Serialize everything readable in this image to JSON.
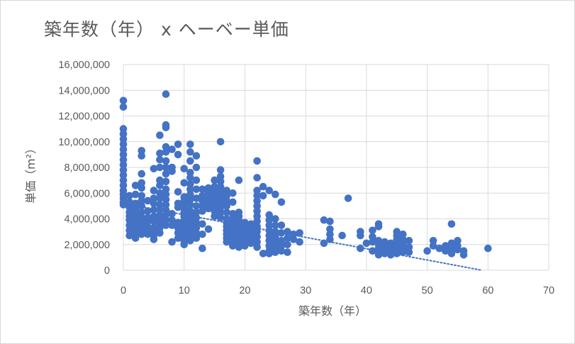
{
  "chart_data": {
    "type": "scatter",
    "title": "築年数（年） x ヘーベー単価",
    "xlabel": "築年数（年）",
    "ylabel": "単価（m²）",
    "xlim": [
      0,
      70
    ],
    "ylim": [
      0,
      16000000
    ],
    "x_ticks": [
      "0",
      "10",
      "20",
      "30",
      "40",
      "50",
      "60",
      "70"
    ],
    "y_ticks": [
      "0",
      "2,000,000",
      "4,000,000",
      "6,000,000",
      "8,000,000",
      "10,000,000",
      "12,000,000",
      "14,000,000",
      "16,000,000"
    ],
    "grid": true,
    "legend": "none",
    "marker_color": "#4472c4",
    "trendline": {
      "style": "dotted linear",
      "color": "#4472c4",
      "start": [
        0,
        5200000
      ],
      "end": [
        59,
        0
      ]
    },
    "points": [
      [
        0,
        13200000
      ],
      [
        0,
        12700000
      ],
      [
        0,
        11000000
      ],
      [
        0,
        10600000
      ],
      [
        0,
        10200000
      ],
      [
        0,
        9800000
      ],
      [
        0,
        9400000
      ],
      [
        0,
        9000000
      ],
      [
        0,
        8600000
      ],
      [
        0,
        8200000
      ],
      [
        0,
        7800000
      ],
      [
        0,
        7400000
      ],
      [
        0,
        7000000
      ],
      [
        0,
        6600000
      ],
      [
        0,
        6200000
      ],
      [
        0,
        5900000
      ],
      [
        0,
        5600000
      ],
      [
        0,
        5300000
      ],
      [
        0,
        5100000
      ],
      [
        1,
        5800000
      ],
      [
        1,
        5300000
      ],
      [
        1,
        4900000
      ],
      [
        1,
        4500000
      ],
      [
        1,
        4200000
      ],
      [
        1,
        3900000
      ],
      [
        1,
        3500000
      ],
      [
        1,
        3100000
      ],
      [
        1,
        2700000
      ],
      [
        2,
        6600000
      ],
      [
        2,
        5900000
      ],
      [
        2,
        5200000
      ],
      [
        2,
        4800000
      ],
      [
        2,
        4400000
      ],
      [
        2,
        4000000
      ],
      [
        2,
        3600000
      ],
      [
        2,
        3200000
      ],
      [
        2,
        2800000
      ],
      [
        2,
        2500000
      ],
      [
        3,
        9300000
      ],
      [
        3,
        8900000
      ],
      [
        3,
        7500000
      ],
      [
        3,
        6800000
      ],
      [
        3,
        6400000
      ],
      [
        3,
        5800000
      ],
      [
        3,
        5400000
      ],
      [
        3,
        5000000
      ],
      [
        3,
        4500000
      ],
      [
        3,
        4100000
      ],
      [
        3,
        3800000
      ],
      [
        3,
        3500000
      ],
      [
        3,
        3100000
      ],
      [
        3,
        2800000
      ],
      [
        4,
        5400000
      ],
      [
        4,
        4600000
      ],
      [
        4,
        4100000
      ],
      [
        4,
        3800000
      ],
      [
        4,
        3400000
      ],
      [
        4,
        3000000
      ],
      [
        4,
        2800000
      ],
      [
        5,
        7900000
      ],
      [
        5,
        6200000
      ],
      [
        5,
        5600000
      ],
      [
        5,
        5200000
      ],
      [
        5,
        4700000
      ],
      [
        5,
        4200000
      ],
      [
        5,
        3800000
      ],
      [
        5,
        3300000
      ],
      [
        5,
        3000000
      ],
      [
        5,
        2700000
      ],
      [
        5,
        2400000
      ],
      [
        6,
        10500000
      ],
      [
        6,
        9100000
      ],
      [
        6,
        8600000
      ],
      [
        6,
        8000000
      ],
      [
        6,
        7000000
      ],
      [
        6,
        6600000
      ],
      [
        6,
        6000000
      ],
      [
        6,
        5600000
      ],
      [
        6,
        5100000
      ],
      [
        6,
        4700000
      ],
      [
        6,
        4300000
      ],
      [
        6,
        4000000
      ],
      [
        6,
        3600000
      ],
      [
        6,
        3300000
      ],
      [
        6,
        2900000
      ],
      [
        7,
        13700000
      ],
      [
        7,
        11300000
      ],
      [
        7,
        11100000
      ],
      [
        7,
        9600000
      ],
      [
        7,
        9200000
      ],
      [
        7,
        8500000
      ],
      [
        7,
        8000000
      ],
      [
        7,
        7500000
      ],
      [
        7,
        6900000
      ],
      [
        7,
        6300000
      ],
      [
        7,
        5900000
      ],
      [
        7,
        5500000
      ],
      [
        7,
        5100000
      ],
      [
        7,
        4700000
      ],
      [
        7,
        4300000
      ],
      [
        7,
        3900000
      ],
      [
        7,
        3500000
      ],
      [
        8,
        9400000
      ],
      [
        8,
        8000000
      ],
      [
        8,
        7700000
      ],
      [
        8,
        4400000
      ],
      [
        8,
        3900000
      ],
      [
        8,
        3500000
      ],
      [
        8,
        2200000
      ],
      [
        9,
        9800000
      ],
      [
        9,
        9000000
      ],
      [
        9,
        6100000
      ],
      [
        9,
        5200000
      ],
      [
        9,
        4900000
      ],
      [
        9,
        3700000
      ],
      [
        9,
        3300000
      ],
      [
        9,
        2900000
      ],
      [
        9,
        2500000
      ],
      [
        10,
        7900000
      ],
      [
        10,
        6800000
      ],
      [
        10,
        5700000
      ],
      [
        10,
        5400000
      ],
      [
        10,
        5100000
      ],
      [
        10,
        4800000
      ],
      [
        10,
        4500000
      ],
      [
        10,
        4200000
      ],
      [
        10,
        3900000
      ],
      [
        10,
        3600000
      ],
      [
        10,
        3300000
      ],
      [
        10,
        3000000
      ],
      [
        10,
        2700000
      ],
      [
        10,
        2300000
      ],
      [
        10,
        2000000
      ],
      [
        11,
        9800000
      ],
      [
        11,
        9200000
      ],
      [
        11,
        8500000
      ],
      [
        11,
        7600000
      ],
      [
        11,
        7200000
      ],
      [
        11,
        6700000
      ],
      [
        11,
        6300000
      ],
      [
        11,
        5900000
      ],
      [
        11,
        5500000
      ],
      [
        11,
        5100000
      ],
      [
        11,
        4600000
      ],
      [
        11,
        4200000
      ],
      [
        11,
        3800000
      ],
      [
        11,
        3400000
      ],
      [
        11,
        3000000
      ],
      [
        11,
        2600000
      ],
      [
        11,
        2300000
      ],
      [
        12,
        8900000
      ],
      [
        12,
        8000000
      ],
      [
        12,
        7000000
      ],
      [
        12,
        6300000
      ],
      [
        12,
        5600000
      ],
      [
        12,
        5000000
      ],
      [
        12,
        4500000
      ],
      [
        12,
        4100000
      ],
      [
        12,
        3700000
      ],
      [
        12,
        3300000
      ],
      [
        12,
        2900000
      ],
      [
        12,
        2500000
      ],
      [
        13,
        6300000
      ],
      [
        13,
        5800000
      ],
      [
        13,
        5400000
      ],
      [
        13,
        5000000
      ],
      [
        13,
        4600000
      ],
      [
        13,
        3600000
      ],
      [
        13,
        2800000
      ],
      [
        13,
        1700000
      ],
      [
        14,
        6400000
      ],
      [
        14,
        6000000
      ],
      [
        14,
        5600000
      ],
      [
        14,
        5200000
      ],
      [
        14,
        4800000
      ],
      [
        14,
        3200000
      ],
      [
        15,
        7000000
      ],
      [
        15,
        6500000
      ],
      [
        15,
        6200000
      ],
      [
        15,
        5800000
      ],
      [
        15,
        5400000
      ],
      [
        15,
        5000000
      ],
      [
        15,
        4600000
      ],
      [
        15,
        4200000
      ],
      [
        16,
        10000000
      ],
      [
        16,
        7800000
      ],
      [
        16,
        7300000
      ],
      [
        16,
        6900000
      ],
      [
        16,
        6500000
      ],
      [
        16,
        6100000
      ],
      [
        16,
        5700000
      ],
      [
        16,
        5300000
      ],
      [
        16,
        4900000
      ],
      [
        16,
        4500000
      ],
      [
        16,
        4100000
      ],
      [
        17,
        6200000
      ],
      [
        17,
        5800000
      ],
      [
        17,
        5400000
      ],
      [
        17,
        5000000
      ],
      [
        17,
        4500000
      ],
      [
        17,
        4000000
      ],
      [
        17,
        3700000
      ],
      [
        17,
        3400000
      ],
      [
        17,
        3100000
      ],
      [
        17,
        2800000
      ],
      [
        17,
        2500000
      ],
      [
        17,
        2200000
      ],
      [
        18,
        6000000
      ],
      [
        18,
        5300000
      ],
      [
        18,
        4400000
      ],
      [
        18,
        4000000
      ],
      [
        18,
        3600000
      ],
      [
        18,
        3300000
      ],
      [
        18,
        3000000
      ],
      [
        18,
        2700000
      ],
      [
        18,
        2400000
      ],
      [
        18,
        2100000
      ],
      [
        18,
        1900000
      ],
      [
        19,
        7000000
      ],
      [
        19,
        4500000
      ],
      [
        19,
        4200000
      ],
      [
        19,
        3900000
      ],
      [
        19,
        3600000
      ],
      [
        19,
        3300000
      ],
      [
        19,
        3000000
      ],
      [
        19,
        2700000
      ],
      [
        19,
        2400000
      ],
      [
        19,
        2100000
      ],
      [
        19,
        1800000
      ],
      [
        20,
        3700000
      ],
      [
        20,
        3300000
      ],
      [
        20,
        2900000
      ],
      [
        20,
        2500000
      ],
      [
        20,
        2200000
      ],
      [
        20,
        1900000
      ],
      [
        21,
        3600000
      ],
      [
        21,
        3200000
      ],
      [
        21,
        2800000
      ],
      [
        21,
        2400000
      ],
      [
        21,
        2100000
      ],
      [
        22,
        8500000
      ],
      [
        22,
        7200000
      ],
      [
        22,
        6200000
      ],
      [
        22,
        5800000
      ],
      [
        22,
        5400000
      ],
      [
        22,
        5000000
      ],
      [
        22,
        4600000
      ],
      [
        22,
        4200000
      ],
      [
        22,
        3800000
      ],
      [
        22,
        3400000
      ],
      [
        22,
        3000000
      ],
      [
        22,
        2600000
      ],
      [
        22,
        2200000
      ],
      [
        22,
        1800000
      ],
      [
        23,
        6500000
      ],
      [
        23,
        5800000
      ],
      [
        23,
        1300000
      ],
      [
        24,
        6200000
      ],
      [
        24,
        4300000
      ],
      [
        24,
        3900000
      ],
      [
        24,
        3500000
      ],
      [
        24,
        3100000
      ],
      [
        24,
        2700000
      ],
      [
        24,
        2300000
      ],
      [
        24,
        1900000
      ],
      [
        24,
        1500000
      ],
      [
        24,
        1300000
      ],
      [
        25,
        5900000
      ],
      [
        25,
        4000000
      ],
      [
        25,
        3500000
      ],
      [
        25,
        3000000
      ],
      [
        25,
        2600000
      ],
      [
        25,
        2200000
      ],
      [
        25,
        1800000
      ],
      [
        25,
        1400000
      ],
      [
        26,
        5300000
      ],
      [
        26,
        3500000
      ],
      [
        26,
        2900000
      ],
      [
        26,
        2300000
      ],
      [
        26,
        1900000
      ],
      [
        26,
        1500000
      ],
      [
        27,
        3000000
      ],
      [
        27,
        2500000
      ],
      [
        27,
        2000000
      ],
      [
        27,
        1400000
      ],
      [
        28,
        2800000
      ],
      [
        28,
        2400000
      ],
      [
        29,
        2900000
      ],
      [
        29,
        2200000
      ],
      [
        33,
        3900000
      ],
      [
        33,
        2100000
      ],
      [
        34,
        3800000
      ],
      [
        34,
        3200000
      ],
      [
        34,
        2800000
      ],
      [
        34,
        2400000
      ],
      [
        36,
        2700000
      ],
      [
        37,
        5600000
      ],
      [
        39,
        3000000
      ],
      [
        39,
        2700000
      ],
      [
        39,
        1700000
      ],
      [
        40,
        2100000
      ],
      [
        41,
        3100000
      ],
      [
        41,
        2600000
      ],
      [
        41,
        2200000
      ],
      [
        41,
        1500000
      ],
      [
        42,
        3600000
      ],
      [
        42,
        3400000
      ],
      [
        42,
        2300000
      ],
      [
        42,
        2000000
      ],
      [
        42,
        1700000
      ],
      [
        42,
        1400000
      ],
      [
        42,
        1200000
      ],
      [
        43,
        2200000
      ],
      [
        43,
        1900000
      ],
      [
        43,
        1600000
      ],
      [
        43,
        1300000
      ],
      [
        44,
        2100000
      ],
      [
        44,
        1800000
      ],
      [
        44,
        1500000
      ],
      [
        44,
        1200000
      ],
      [
        45,
        3000000
      ],
      [
        45,
        2700000
      ],
      [
        45,
        2400000
      ],
      [
        45,
        2100000
      ],
      [
        45,
        1800000
      ],
      [
        45,
        1500000
      ],
      [
        45,
        1300000
      ],
      [
        46,
        2800000
      ],
      [
        46,
        2400000
      ],
      [
        46,
        2000000
      ],
      [
        46,
        1700000
      ],
      [
        46,
        1400000
      ],
      [
        47,
        2300000
      ],
      [
        47,
        1800000
      ],
      [
        47,
        1400000
      ],
      [
        50,
        1500000
      ],
      [
        51,
        2300000
      ],
      [
        51,
        1900000
      ],
      [
        52,
        1700000
      ],
      [
        53,
        1900000
      ],
      [
        53,
        1500000
      ],
      [
        54,
        3600000
      ],
      [
        54,
        2100000
      ],
      [
        54,
        1800000
      ],
      [
        54,
        1500000
      ],
      [
        54,
        1300000
      ],
      [
        55,
        2300000
      ],
      [
        55,
        1900000
      ],
      [
        55,
        1600000
      ],
      [
        56,
        1500000
      ],
      [
        56,
        1200000
      ],
      [
        60,
        1700000
      ]
    ]
  }
}
